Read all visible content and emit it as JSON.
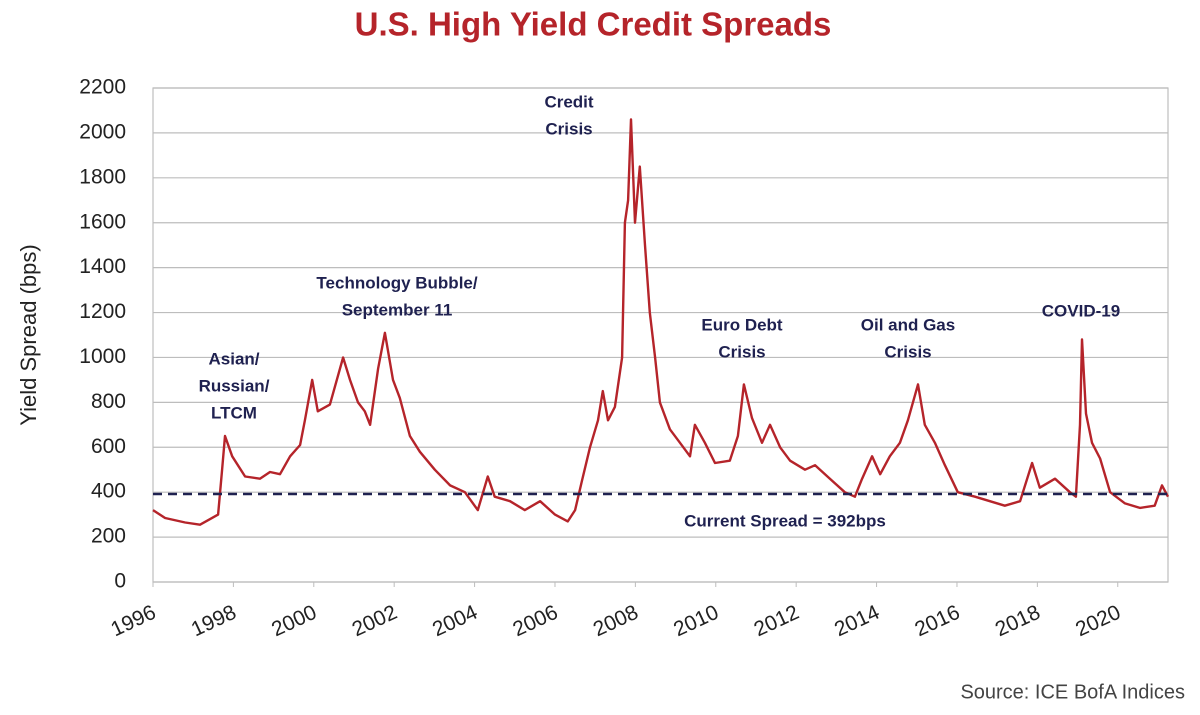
{
  "chart_data": {
    "type": "line",
    "title": "U.S. High Yield Credit Spreads",
    "y_label": "Yield Spread (bps)",
    "source": "Source: ICE BofA Indices",
    "color": "#b5242a",
    "grid": true,
    "xlim": [
      1996,
      2021.25
    ],
    "xticks": [
      1996,
      1998,
      2000,
      2002,
      2004,
      2006,
      2008,
      2010,
      2012,
      2014,
      2016,
      2018,
      2020
    ],
    "ylim": [
      0,
      2200
    ],
    "yticks": [
      0,
      200,
      400,
      600,
      800,
      1000,
      1200,
      1400,
      1600,
      1800,
      2000,
      2200
    ],
    "x": [
      1996.0,
      1996.3,
      1996.8,
      1997.17,
      1997.42,
      1997.62,
      1997.72,
      1997.79,
      1997.97,
      1998.29,
      1998.66,
      1998.91,
      1999.16,
      1999.41,
      1999.66,
      1999.78,
      1999.96,
      2000.1,
      2000.4,
      2000.73,
      2000.9,
      2001.1,
      2001.27,
      2001.4,
      2001.6,
      2001.77,
      2001.97,
      2002.14,
      2002.39,
      2002.64,
      2003.01,
      2003.39,
      2003.76,
      2004.08,
      2004.33,
      2004.5,
      2004.88,
      2005.25,
      2005.63,
      2006.0,
      2006.32,
      2006.5,
      2006.67,
      2006.87,
      2007.07,
      2007.19,
      2007.32,
      2007.49,
      2007.67,
      2007.74,
      2007.82,
      2007.89,
      2007.99,
      2008.11,
      2008.24,
      2008.36,
      2008.49,
      2008.61,
      2008.86,
      2009.11,
      2009.36,
      2009.48,
      2009.73,
      2009.98,
      2010.35,
      2010.55,
      2010.7,
      2010.9,
      2011.15,
      2011.35,
      2011.6,
      2011.85,
      2012.22,
      2012.47,
      2012.84,
      2013.21,
      2013.46,
      2013.64,
      2013.89,
      2014.09,
      2014.33,
      2014.58,
      2014.78,
      2015.03,
      2015.2,
      2015.45,
      2015.7,
      2016.02,
      2016.45,
      2016.82,
      2017.19,
      2017.57,
      2017.87,
      2018.06,
      2018.44,
      2018.81,
      2018.96,
      2019.06,
      2019.11,
      2019.21,
      2019.36,
      2019.56,
      2019.81,
      2020.18,
      2020.55,
      2020.92,
      2021.1,
      2021.25
    ],
    "values": [
      320,
      285,
      265,
      255,
      280,
      300,
      500,
      650,
      560,
      470,
      460,
      490,
      480,
      560,
      610,
      720,
      900,
      760,
      790,
      1000,
      900,
      800,
      760,
      700,
      950,
      1110,
      900,
      820,
      650,
      580,
      500,
      430,
      400,
      320,
      470,
      380,
      360,
      320,
      360,
      300,
      270,
      320,
      450,
      600,
      720,
      850,
      720,
      780,
      1000,
      1600,
      1700,
      2060,
      1600,
      1850,
      1500,
      1200,
      1000,
      800,
      680,
      620,
      560,
      700,
      620,
      530,
      540,
      650,
      880,
      730,
      620,
      700,
      600,
      540,
      500,
      520,
      460,
      400,
      380,
      460,
      560,
      480,
      560,
      620,
      720,
      880,
      700,
      620,
      520,
      400,
      380,
      360,
      340,
      360,
      530,
      420,
      460,
      400,
      380,
      700,
      1080,
      750,
      620,
      550,
      400,
      350,
      330,
      340,
      430,
      380
    ],
    "reference_line": {
      "value": 392,
      "label": "Current Spread = 392bps"
    },
    "annotations": [
      {
        "lines": [
          "Asian/",
          "Russian/",
          "LTCM"
        ]
      },
      {
        "lines": [
          "Technology Bubble/",
          "September 11"
        ]
      },
      {
        "lines": [
          "Credit",
          "Crisis"
        ]
      },
      {
        "lines": [
          "Euro Debt",
          "Crisis"
        ]
      },
      {
        "lines": [
          "Oil and Gas",
          "Crisis"
        ]
      },
      {
        "lines": [
          "COVID-19"
        ]
      }
    ]
  }
}
